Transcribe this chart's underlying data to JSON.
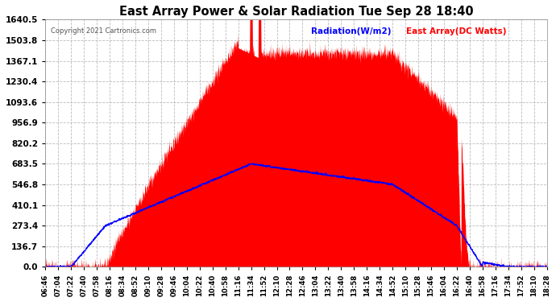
{
  "title": "East Array Power & Solar Radiation Tue Sep 28 18:40",
  "copyright": "Copyright 2021 Cartronics.com",
  "legend_radiation": "Radiation(W/m2)",
  "legend_east_array": "East Array(DC Watts)",
  "yticks": [
    0.0,
    136.7,
    273.4,
    410.1,
    546.8,
    683.5,
    820.2,
    956.9,
    1093.6,
    1230.4,
    1367.1,
    1503.8,
    1640.5
  ],
  "ymax": 1640.5,
  "ymin": 0.0,
  "bg_color": "#ffffff",
  "plot_bg_color": "#ffffff",
  "grid_color": "#aaaaaa",
  "red_fill_color": "#ff0000",
  "blue_line_color": "#0000ff",
  "title_color": "#000000",
  "tick_color": "#000000",
  "radiation_label_color": "#0000ff",
  "east_array_label_color": "#ff0000",
  "copyright_color": "#555555",
  "xtick_labels": [
    "06:46",
    "07:04",
    "07:22",
    "07:40",
    "07:58",
    "08:16",
    "08:34",
    "08:52",
    "09:10",
    "09:28",
    "09:46",
    "10:04",
    "10:22",
    "10:40",
    "10:58",
    "11:16",
    "11:34",
    "11:52",
    "12:10",
    "12:28",
    "12:46",
    "13:04",
    "13:22",
    "13:40",
    "13:58",
    "14:16",
    "14:34",
    "14:52",
    "15:10",
    "15:28",
    "15:46",
    "16:04",
    "16:22",
    "16:40",
    "16:58",
    "17:16",
    "17:34",
    "17:52",
    "18:10",
    "18:28"
  ]
}
